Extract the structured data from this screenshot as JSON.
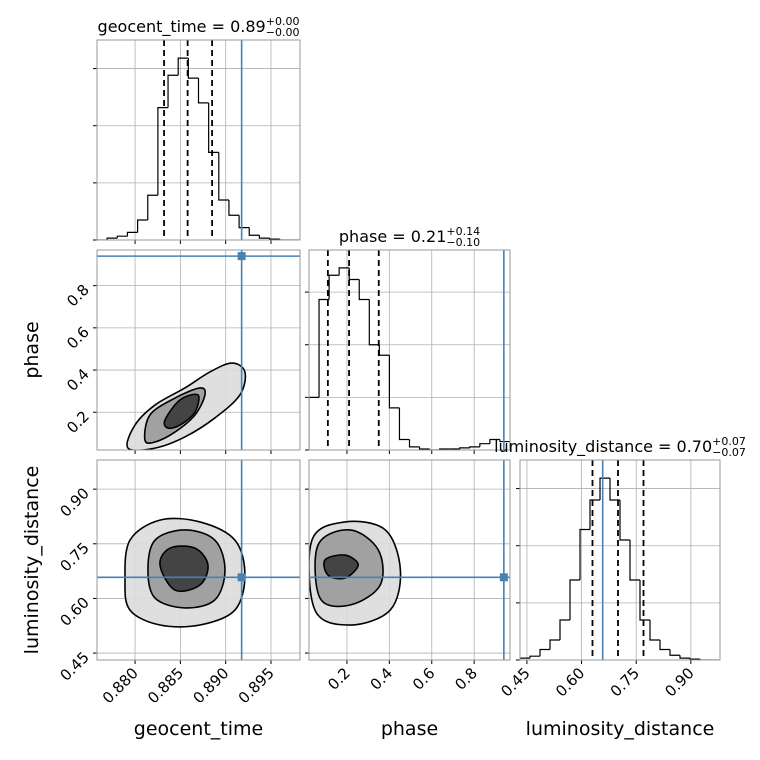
{
  "chart_data": [
    {
      "type": "histogram",
      "title": "geocent_time = 0.89",
      "title_sup": "+0.00",
      "title_sub": "−0.00",
      "bins": [
        0.8758,
        0.87692,
        0.87804,
        0.87916,
        0.88028,
        0.8814,
        0.88252,
        0.88364,
        0.88476,
        0.88588,
        0.887,
        0.88812,
        0.88924,
        0.89036,
        0.89148,
        0.8926,
        0.89372,
        0.89484,
        0.89596,
        0.89708,
        0.8982
      ],
      "counts": [
        0,
        2,
        4,
        8,
        21,
        47,
        139,
        173,
        191,
        170,
        144,
        92,
        42,
        26,
        13,
        5,
        2,
        1,
        0,
        0
      ],
      "quantiles": [
        0.8832,
        0.8858,
        0.8885
      ],
      "truth": 0.89176,
      "truth_color": "#4682b4",
      "color": "#000000",
      "xlim": [
        0.8758,
        0.8982
      ],
      "xticks": [
        {
          "value": 0.88,
          "label": "0.880"
        },
        0.885,
        {
          "value": 0.89,
          "label": "0.890"
        },
        0.895
      ],
      "ylim": [
        0,
        210
      ],
      "yticks": [
        0,
        60,
        120,
        180
      ],
      "grid": true
    },
    {
      "type": "contour",
      "ylabel": "phase",
      "truth": {
        "x": 0.89176,
        "y": 0.94
      },
      "truth_color": "#4682b4",
      "levels": [
        {
          "color": "#dcdcdc",
          "x": [
            0.87922,
            0.87999,
            0.8822,
            0.8855,
            0.88826,
            0.89069,
            0.89212,
            0.89157,
            0.88881,
            0.8855,
            0.8822
          ],
          "y": [
            0.03,
            0.139,
            0.234,
            0.315,
            0.391,
            0.433,
            0.391,
            0.282,
            0.173,
            0.083,
            0.03
          ]
        },
        {
          "color": "#9a9a9a",
          "x": [
            0.88109,
            0.88164,
            0.8844,
            0.88716,
            0.88771,
            0.88661,
            0.8844,
            0.8822
          ],
          "y": [
            0.068,
            0.187,
            0.267,
            0.315,
            0.282,
            0.187,
            0.106,
            0.059
          ]
        },
        {
          "color": "#3a3a3a",
          "x": [
            0.8833,
            0.88495,
            0.88694,
            0.88661,
            0.88495,
            0.88363
          ],
          "y": [
            0.163,
            0.258,
            0.282,
            0.201,
            0.139,
            0.125
          ]
        }
      ],
      "xlim": [
        0.8758,
        0.8982
      ],
      "xticks": [
        {
          "value": 0.88,
          "label": "0.880"
        },
        0.885,
        {
          "value": 0.89,
          "label": "0.890"
        },
        0.895
      ],
      "ylim": [
        0.021,
        0.969
      ],
      "yticks": [
        0.2,
        0.4,
        0.6,
        0.8
      ],
      "grid": true
    },
    {
      "type": "histogram",
      "title": "phase = 0.21",
      "title_sup": "+0.14",
      "title_sub": "−0.10",
      "bins": [
        0.021,
        0.0684,
        0.1158,
        0.1632,
        0.2106,
        0.258,
        0.3054,
        0.3528,
        0.4002,
        0.4476,
        0.495,
        0.5424,
        0.5898,
        0.6372,
        0.6846,
        0.732,
        0.7794,
        0.8268,
        0.8742,
        0.9216,
        0.969
      ],
      "counts": [
        50,
        143,
        166,
        173,
        162,
        143,
        100,
        90,
        40,
        10,
        3,
        1,
        0,
        1,
        1,
        2,
        3,
        6,
        10,
        8
      ],
      "quantiles": [
        0.11,
        0.21,
        0.35
      ],
      "truth": 0.94,
      "truth_color": "#4682b4",
      "color": "#000000",
      "xlim": [
        0.021,
        0.969
      ],
      "xticks": [
        0.2,
        0.4,
        0.6,
        0.8
      ],
      "ylim": [
        0,
        190
      ],
      "yticks": [
        0,
        50,
        100,
        150
      ],
      "grid": true
    },
    {
      "type": "contour",
      "xlabel": "geocent_time",
      "ylabel": "luminosity_distance",
      "truth": {
        "x": 0.89176,
        "y": 0.658
      },
      "truth_color": "#4682b4",
      "levels": [
        {
          "color": "#dcdcdc",
          "x": [
            0.87889,
            0.87944,
            0.88275,
            0.88716,
            0.89102,
            0.89212,
            0.89102,
            0.88716,
            0.88275,
            0.87944
          ],
          "y": [
            0.651,
            0.76,
            0.815,
            0.81,
            0.76,
            0.664,
            0.568,
            0.527,
            0.527,
            0.568
          ]
        },
        {
          "color": "#9a9a9a",
          "x": [
            0.88142,
            0.8822,
            0.8855,
            0.88881,
            0.88992,
            0.88881,
            0.8855,
            0.8822
          ],
          "y": [
            0.678,
            0.76,
            0.788,
            0.76,
            0.678,
            0.596,
            0.574,
            0.601
          ]
        },
        {
          "color": "#3a3a3a",
          "x": [
            0.88275,
            0.88385,
            0.88661,
            0.88804,
            0.88716,
            0.8844
          ],
          "y": [
            0.692,
            0.738,
            0.738,
            0.692,
            0.637,
            0.623
          ]
        }
      ],
      "xlim": [
        0.8758,
        0.8982
      ],
      "xticks": [
        {
          "value": 0.88,
          "label": "0.880"
        },
        0.885,
        {
          "value": 0.89,
          "label": "0.890"
        },
        0.895
      ],
      "ylim": [
        0.431,
        0.98
      ],
      "yticks": [
        0.45,
        {
          "value": 0.6,
          "label": "0.60"
        },
        0.75,
        {
          "value": 0.9,
          "label": "0.90"
        }
      ],
      "grid": true
    },
    {
      "type": "contour",
      "xlabel": "phase",
      "truth": {
        "x": 0.94,
        "y": 0.658
      },
      "truth_color": "#4682b4",
      "levels": [
        {
          "color": "#dcdcdc",
          "x": [
            0.035,
            0.191,
            0.381,
            0.452,
            0.404,
            0.215,
            0.049
          ],
          "y": [
            0.76,
            0.81,
            0.788,
            0.678,
            0.568,
            0.527,
            0.568
          ]
        },
        {
          "color": "#9a9a9a",
          "x": [
            0.064,
            0.215,
            0.348,
            0.357,
            0.215,
            0.073
          ],
          "y": [
            0.747,
            0.788,
            0.733,
            0.637,
            0.582,
            0.601
          ]
        },
        {
          "color": "#3a3a3a",
          "x": [
            0.097,
            0.191,
            0.253,
            0.191,
            0.111
          ],
          "y": [
            0.706,
            0.719,
            0.692,
            0.656,
            0.664
          ]
        }
      ],
      "xlim": [
        0.021,
        0.969
      ],
      "xticks": [
        0.2,
        0.4,
        0.6,
        0.8
      ],
      "ylim": [
        0.431,
        0.98
      ],
      "yticks": [
        0.45,
        {
          "value": 0.6,
          "label": "0.60"
        },
        0.75,
        {
          "value": 0.9,
          "label": "0.90"
        }
      ],
      "grid": true
    },
    {
      "type": "histogram",
      "xlabel": "luminosity_distance",
      "title": "luminosity_distance = 0.70",
      "title_sup": "+0.07",
      "title_sub": "−0.07",
      "bins": [
        0.431,
        0.45845,
        0.4859,
        0.51335,
        0.5408,
        0.56825,
        0.5957,
        0.62315,
        0.6506,
        0.67805,
        0.7055,
        0.73295,
        0.7604,
        0.78785,
        0.8153,
        0.84275,
        0.8702,
        0.89765,
        0.9251,
        0.95255,
        0.98
      ],
      "counts": [
        2,
        4,
        11,
        21,
        42,
        84,
        137,
        168,
        191,
        168,
        126,
        84,
        42,
        21,
        11,
        5,
        2,
        1,
        0,
        0
      ],
      "quantiles": [
        0.63,
        0.7,
        0.77
      ],
      "truth": 0.658,
      "truth_color": "#4682b4",
      "color": "#000000",
      "xlim": [
        0.431,
        0.98
      ],
      "xticks": [
        0.45,
        {
          "value": 0.6,
          "label": "0.60"
        },
        0.75,
        {
          "value": 0.9,
          "label": "0.90"
        }
      ],
      "ylim": [
        0,
        210
      ],
      "yticks": [
        0,
        60,
        120,
        180
      ],
      "grid": true
    }
  ]
}
